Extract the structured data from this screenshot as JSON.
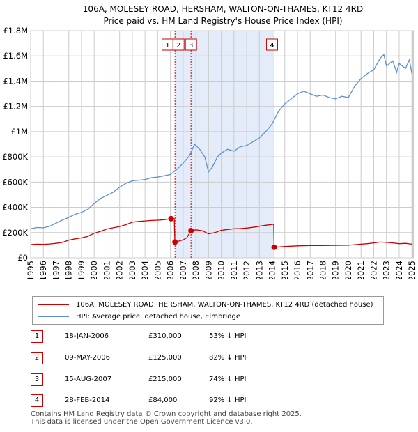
{
  "chart_data": {
    "type": "line",
    "title": "106A, MOLESEY ROAD, HERSHAM, WALTON-ON-THAMES, KT12 4RD",
    "subtitle": "Price paid vs. HM Land Registry's House Price Index (HPI)",
    "xlim": [
      1995,
      2025.1
    ],
    "ylim": [
      0,
      1800000
    ],
    "x_ticks": [
      1995,
      1996,
      1997,
      1998,
      1999,
      2000,
      2001,
      2002,
      2003,
      2004,
      2005,
      2006,
      2007,
      2008,
      2009,
      2010,
      2011,
      2012,
      2013,
      2014,
      2015,
      2016,
      2017,
      2018,
      2019,
      2020,
      2021,
      2022,
      2023,
      2024,
      2025
    ],
    "y_ticks": [
      {
        "value": 0,
        "label": "£0"
      },
      {
        "value": 200000,
        "label": "£200K"
      },
      {
        "value": 400000,
        "label": "£400K"
      },
      {
        "value": 600000,
        "label": "£600K"
      },
      {
        "value": 800000,
        "label": "£800K"
      },
      {
        "value": 1000000,
        "label": "£1M"
      },
      {
        "value": 1200000,
        "label": "£1.2M"
      },
      {
        "value": 1400000,
        "label": "£1.4M"
      },
      {
        "value": 1600000,
        "label": "£1.6M"
      },
      {
        "value": 1800000,
        "label": "£1.8M"
      }
    ],
    "shaded_regions": [
      [
        2006.36,
        2014.16
      ]
    ],
    "series": [
      {
        "name": "106A, MOLESEY ROAD, HERSHAM, WALTON-ON-THAMES, KT12 4RD (detached house)",
        "color": "#cc0000",
        "points": [
          [
            1995.0,
            105000
          ],
          [
            1995.5,
            108000
          ],
          [
            1996.0,
            107000
          ],
          [
            1996.5,
            110000
          ],
          [
            1997.0,
            115000
          ],
          [
            1997.5,
            122000
          ],
          [
            1998.0,
            140000
          ],
          [
            1998.5,
            150000
          ],
          [
            1999.0,
            158000
          ],
          [
            1999.5,
            170000
          ],
          [
            2000.0,
            195000
          ],
          [
            2000.5,
            210000
          ],
          [
            2001.0,
            228000
          ],
          [
            2001.5,
            238000
          ],
          [
            2002.0,
            248000
          ],
          [
            2002.5,
            262000
          ],
          [
            2003.0,
            282000
          ],
          [
            2003.5,
            288000
          ],
          [
            2004.0,
            292000
          ],
          [
            2004.5,
            296000
          ],
          [
            2005.0,
            298000
          ],
          [
            2005.5,
            302000
          ],
          [
            2006.05,
            310000
          ],
          [
            2006.3,
            310000
          ],
          [
            2006.35,
            125000
          ],
          [
            2006.5,
            128000
          ],
          [
            2007.0,
            142000
          ],
          [
            2007.3,
            160000
          ],
          [
            2007.62,
            215000
          ],
          [
            2008.0,
            222000
          ],
          [
            2008.5,
            215000
          ],
          [
            2009.0,
            190000
          ],
          [
            2009.5,
            200000
          ],
          [
            2010.0,
            218000
          ],
          [
            2010.5,
            225000
          ],
          [
            2011.0,
            230000
          ],
          [
            2011.5,
            232000
          ],
          [
            2012.0,
            236000
          ],
          [
            2012.5,
            242000
          ],
          [
            2013.0,
            250000
          ],
          [
            2013.5,
            258000
          ],
          [
            2014.05,
            265000
          ],
          [
            2014.13,
            265000
          ],
          [
            2014.16,
            84000
          ],
          [
            2014.5,
            86000
          ],
          [
            2015.0,
            90000
          ],
          [
            2016.0,
            95000
          ],
          [
            2017.0,
            97000
          ],
          [
            2018.0,
            98000
          ],
          [
            2019.0,
            99000
          ],
          [
            2020.0,
            100000
          ],
          [
            2021.0,
            108000
          ],
          [
            2021.5,
            112000
          ],
          [
            2022.0,
            118000
          ],
          [
            2022.5,
            125000
          ],
          [
            2023.0,
            122000
          ],
          [
            2023.5,
            118000
          ],
          [
            2024.0,
            112000
          ],
          [
            2024.5,
            115000
          ],
          [
            2025.0,
            108000
          ]
        ]
      },
      {
        "name": "HPI: Average price, detached house, Elmbridge",
        "color": "#5b8fd6",
        "points": [
          [
            1995.0,
            230000
          ],
          [
            1995.5,
            240000
          ],
          [
            1996.0,
            238000
          ],
          [
            1996.5,
            250000
          ],
          [
            1997.0,
            275000
          ],
          [
            1997.5,
            300000
          ],
          [
            1998.0,
            320000
          ],
          [
            1998.5,
            345000
          ],
          [
            1999.0,
            360000
          ],
          [
            1999.5,
            385000
          ],
          [
            2000.0,
            430000
          ],
          [
            2000.5,
            470000
          ],
          [
            2001.0,
            495000
          ],
          [
            2001.5,
            520000
          ],
          [
            2002.0,
            560000
          ],
          [
            2002.5,
            590000
          ],
          [
            2003.0,
            610000
          ],
          [
            2003.5,
            615000
          ],
          [
            2004.0,
            620000
          ],
          [
            2004.5,
            635000
          ],
          [
            2005.0,
            640000
          ],
          [
            2005.5,
            650000
          ],
          [
            2006.0,
            660000
          ],
          [
            2006.5,
            700000
          ],
          [
            2007.0,
            750000
          ],
          [
            2007.5,
            810000
          ],
          [
            2007.9,
            900000
          ],
          [
            2008.3,
            860000
          ],
          [
            2008.7,
            800000
          ],
          [
            2009.0,
            680000
          ],
          [
            2009.3,
            720000
          ],
          [
            2009.7,
            800000
          ],
          [
            2010.0,
            830000
          ],
          [
            2010.5,
            860000
          ],
          [
            2011.0,
            845000
          ],
          [
            2011.5,
            880000
          ],
          [
            2012.0,
            890000
          ],
          [
            2012.5,
            920000
          ],
          [
            2013.0,
            950000
          ],
          [
            2013.5,
            1000000
          ],
          [
            2014.0,
            1060000
          ],
          [
            2014.5,
            1160000
          ],
          [
            2015.0,
            1220000
          ],
          [
            2015.5,
            1260000
          ],
          [
            2016.0,
            1300000
          ],
          [
            2016.5,
            1320000
          ],
          [
            2017.0,
            1300000
          ],
          [
            2017.5,
            1280000
          ],
          [
            2018.0,
            1290000
          ],
          [
            2018.5,
            1270000
          ],
          [
            2019.0,
            1260000
          ],
          [
            2019.5,
            1280000
          ],
          [
            2020.0,
            1270000
          ],
          [
            2020.5,
            1360000
          ],
          [
            2021.0,
            1420000
          ],
          [
            2021.5,
            1460000
          ],
          [
            2022.0,
            1490000
          ],
          [
            2022.5,
            1580000
          ],
          [
            2022.8,
            1610000
          ],
          [
            2023.0,
            1520000
          ],
          [
            2023.5,
            1560000
          ],
          [
            2023.8,
            1470000
          ],
          [
            2024.0,
            1540000
          ],
          [
            2024.5,
            1500000
          ],
          [
            2024.8,
            1570000
          ],
          [
            2025.0,
            1460000
          ]
        ]
      }
    ],
    "transactions": [
      {
        "id": "1",
        "date": "18-JAN-2006",
        "x": 2006.05,
        "price_value": 310000,
        "price": "£310,000",
        "hpi": "53% ↓ HPI"
      },
      {
        "id": "2",
        "date": "09-MAY-2006",
        "x": 2006.36,
        "price_value": 125000,
        "price": "£125,000",
        "hpi": "82% ↓ HPI"
      },
      {
        "id": "3",
        "date": "15-AUG-2007",
        "x": 2007.62,
        "price_value": 215000,
        "price": "£215,000",
        "hpi": "74% ↓ HPI"
      },
      {
        "id": "4",
        "date": "28-FEB-2014",
        "x": 2014.16,
        "price_value": 84000,
        "price": "£84,000",
        "hpi": "92% ↓ HPI"
      }
    ]
  },
  "legend": {
    "sold_label": "106A, MOLESEY ROAD, HERSHAM, WALTON-ON-THAMES, KT12 4RD (detached house)",
    "hpi_label": "HPI: Average price, detached house, Elmbridge"
  },
  "footer": {
    "line1": "Contains HM Land Registry data © Crown copyright and database right 2025.",
    "line2": "This data is licensed under the Open Government Licence v3.0."
  }
}
